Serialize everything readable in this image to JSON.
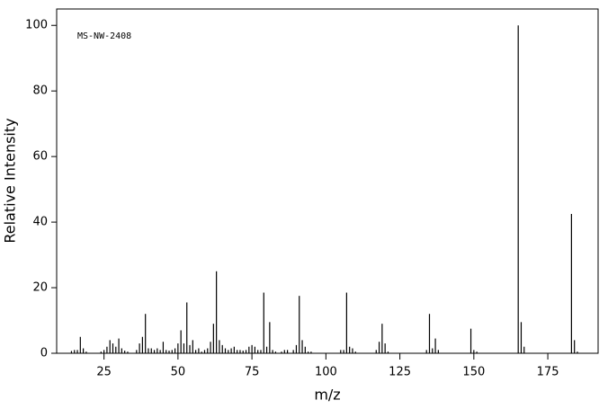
{
  "chart_data": {
    "type": "stem",
    "annotation": "MS-NW-2408",
    "x_label": "m/z",
    "y_label": "Relative Intensity",
    "color": "#000000",
    "x": [
      14,
      15,
      16,
      17,
      18,
      19,
      24,
      25,
      26,
      27,
      28,
      29,
      30,
      31,
      32,
      33,
      36,
      37,
      38,
      39,
      40,
      41,
      42,
      43,
      44,
      45,
      46,
      47,
      48,
      49,
      50,
      51,
      52,
      53,
      54,
      55,
      56,
      57,
      58,
      59,
      60,
      61,
      62,
      63,
      64,
      65,
      66,
      67,
      68,
      69,
      70,
      71,
      72,
      73,
      74,
      75,
      76,
      77,
      78,
      79,
      80,
      81,
      82,
      83,
      85,
      86,
      87,
      89,
      90,
      91,
      92,
      93,
      94,
      95,
      105,
      106,
      107,
      108,
      109,
      110,
      117,
      118,
      119,
      120,
      121,
      134,
      135,
      136,
      137,
      138,
      149,
      150,
      151,
      165,
      166,
      167,
      183,
      184,
      185
    ],
    "values": [
      0.7,
      1,
      1,
      5,
      1.5,
      0.5,
      0.5,
      1,
      2,
      4,
      3,
      2,
      4.5,
      1.5,
      0.8,
      0.5,
      1,
      3,
      5,
      12,
      1.5,
      1.5,
      1,
      1.5,
      1,
      3.5,
      1,
      0.8,
      1,
      1.5,
      3,
      7,
      3,
      15.5,
      2.5,
      4,
      1,
      1.5,
      0.5,
      1,
      1.5,
      3.5,
      9,
      25,
      4,
      2.5,
      1.5,
      1,
      1.5,
      2,
      1,
      1,
      0.8,
      1,
      2,
      2.5,
      2,
      1,
      1,
      18.5,
      2,
      9.5,
      1,
      0.5,
      0.5,
      1,
      1,
      1,
      2.5,
      17.5,
      4,
      2,
      0.5,
      0.5,
      1,
      1,
      18.5,
      2,
      1.5,
      0.5,
      1,
      3.5,
      9,
      3,
      0.5,
      1,
      12,
      1.5,
      4.5,
      1,
      7.5,
      1,
      0.5,
      100,
      9.5,
      2,
      42.5,
      4,
      0.5
    ],
    "xlim": [
      9,
      192
    ],
    "ylim": [
      0,
      105
    ],
    "xticks": [
      25,
      50,
      75,
      100,
      125,
      150,
      175
    ],
    "yticks": [
      0,
      20,
      40,
      60,
      80,
      100
    ]
  }
}
